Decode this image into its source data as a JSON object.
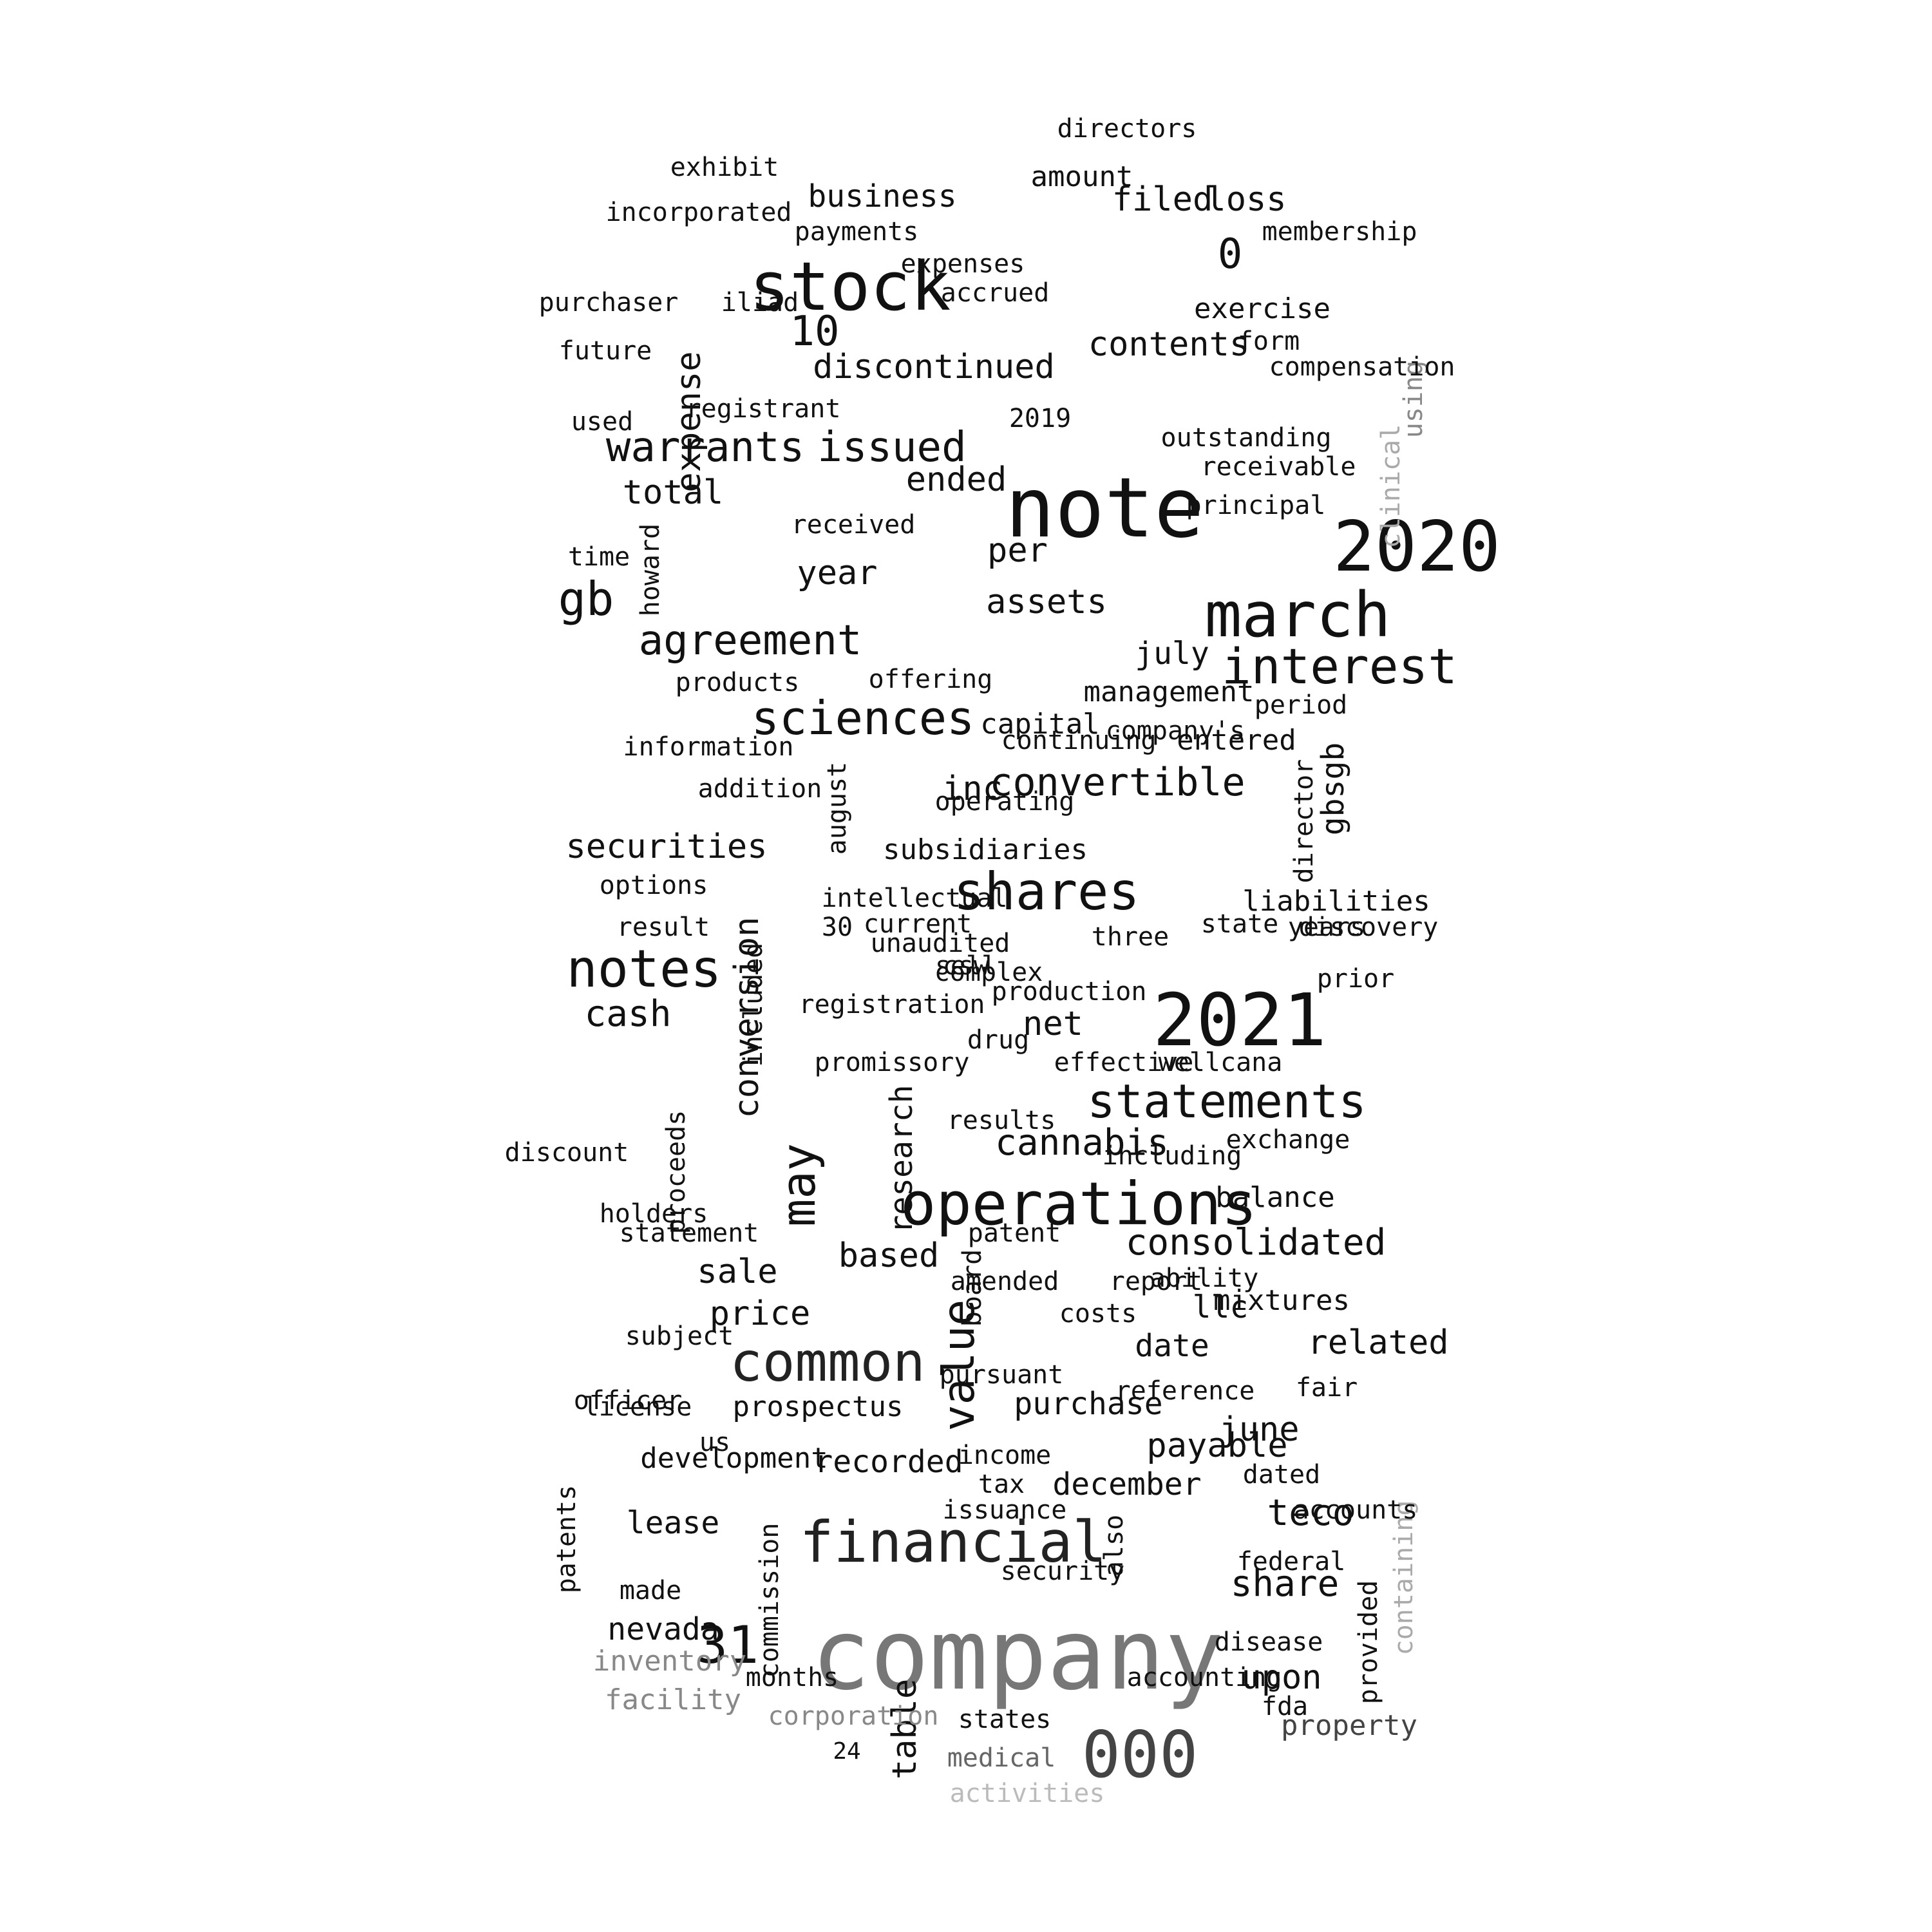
{
  "words": [
    {
      "text": "company",
      "size": 3.8,
      "color": "#777777"
    },
    {
      "text": "note",
      "size": 3.2,
      "color": "#111111"
    },
    {
      "text": "2021",
      "size": 2.8,
      "color": "#111111"
    },
    {
      "text": "2020",
      "size": 2.7,
      "color": "#111111"
    },
    {
      "text": "stock",
      "size": 2.6,
      "color": "#111111"
    },
    {
      "text": "000",
      "size": 2.5,
      "color": "#444444"
    },
    {
      "text": "march",
      "size": 2.4,
      "color": "#111111"
    },
    {
      "text": "operations",
      "size": 2.3,
      "color": "#111111"
    },
    {
      "text": "financial",
      "size": 2.2,
      "color": "#222222"
    },
    {
      "text": "common",
      "size": 2.1,
      "color": "#222222"
    },
    {
      "text": "shares",
      "size": 2.0,
      "color": "#111111"
    },
    {
      "text": "notes",
      "size": 2.0,
      "color": "#111111"
    },
    {
      "text": "31",
      "size": 2.0,
      "color": "#111111"
    },
    {
      "text": "interest",
      "size": 1.9,
      "color": "#111111"
    },
    {
      "text": "statements",
      "size": 1.8,
      "color": "#111111"
    },
    {
      "text": "sciences",
      "size": 1.8,
      "color": "#111111"
    },
    {
      "text": "gb",
      "size": 1.8,
      "color": "#111111"
    },
    {
      "text": "may",
      "size": 1.8,
      "color": "#111111",
      "v": true
    },
    {
      "text": "value",
      "size": 1.7,
      "color": "#111111",
      "v": true
    },
    {
      "text": "agreement",
      "size": 1.6,
      "color": "#111111"
    },
    {
      "text": "warrants",
      "size": 1.6,
      "color": "#111111"
    },
    {
      "text": "issued",
      "size": 1.6,
      "color": "#111111"
    },
    {
      "text": "10",
      "size": 1.6,
      "color": "#111111"
    },
    {
      "text": "0",
      "size": 1.6,
      "color": "#111111"
    },
    {
      "text": "convertible",
      "size": 1.5,
      "color": "#111111"
    },
    {
      "text": "consolidated",
      "size": 1.4,
      "color": "#111111"
    },
    {
      "text": "cannabis",
      "size": 1.4,
      "color": "#111111"
    },
    {
      "text": "cash",
      "size": 1.4,
      "color": "#111111"
    },
    {
      "text": "share",
      "size": 1.4,
      "color": "#111111"
    },
    {
      "text": "teco",
      "size": 1.4,
      "color": "#111111"
    },
    {
      "text": "securities",
      "size": 1.3,
      "color": "#111111"
    },
    {
      "text": "assets",
      "size": 1.3,
      "color": "#111111"
    },
    {
      "text": "discontinued",
      "size": 1.3,
      "color": "#111111"
    },
    {
      "text": "total",
      "size": 1.3,
      "color": "#111111"
    },
    {
      "text": "ended",
      "size": 1.3,
      "color": "#111111"
    },
    {
      "text": "net",
      "size": 1.3,
      "color": "#111111"
    },
    {
      "text": "per",
      "size": 1.3,
      "color": "#111111"
    },
    {
      "text": "contents",
      "size": 1.3,
      "color": "#111111"
    },
    {
      "text": "filed",
      "size": 1.3,
      "color": "#111111"
    },
    {
      "text": "loss",
      "size": 1.3,
      "color": "#111111"
    },
    {
      "text": "inc",
      "size": 1.3,
      "color": "#111111"
    },
    {
      "text": "year",
      "size": 1.3,
      "color": "#111111"
    },
    {
      "text": "conversion",
      "size": 1.3,
      "color": "#111111",
      "v": true
    },
    {
      "text": "expense",
      "size": 1.3,
      "color": "#111111",
      "v": true
    },
    {
      "text": "table",
      "size": 1.3,
      "color": "#111111",
      "v": true
    },
    {
      "text": "based",
      "size": 1.3,
      "color": "#111111"
    },
    {
      "text": "sale",
      "size": 1.3,
      "color": "#111111"
    },
    {
      "text": "price",
      "size": 1.3,
      "color": "#111111"
    },
    {
      "text": "related",
      "size": 1.3,
      "color": "#111111"
    },
    {
      "text": "payable",
      "size": 1.3,
      "color": "#111111"
    },
    {
      "text": "june",
      "size": 1.3,
      "color": "#111111"
    },
    {
      "text": "upon",
      "size": 1.3,
      "color": "#111111"
    },
    {
      "text": "business",
      "size": 1.2,
      "color": "#111111"
    },
    {
      "text": "july",
      "size": 1.2,
      "color": "#111111"
    },
    {
      "text": "llc",
      "size": 1.2,
      "color": "#111111"
    },
    {
      "text": "date",
      "size": 1.2,
      "color": "#111111"
    },
    {
      "text": "purchase",
      "size": 1.2,
      "color": "#111111"
    },
    {
      "text": "recorded",
      "size": 1.2,
      "color": "#111111"
    },
    {
      "text": "december",
      "size": 1.2,
      "color": "#111111"
    },
    {
      "text": "lease",
      "size": 1.2,
      "color": "#111111"
    },
    {
      "text": "nevada",
      "size": 1.2,
      "color": "#111111"
    },
    {
      "text": "gbsgb",
      "size": 1.2,
      "color": "#111111",
      "v": true
    },
    {
      "text": "research",
      "size": 1.2,
      "color": "#111111",
      "v": true
    },
    {
      "text": "subsidiaries",
      "size": 1.1,
      "color": "#111111"
    },
    {
      "text": "liabilities",
      "size": 1.1,
      "color": "#111111"
    },
    {
      "text": "entered",
      "size": 1.1,
      "color": "#111111"
    },
    {
      "text": "capital",
      "size": 1.1,
      "color": "#111111"
    },
    {
      "text": "management",
      "size": 1.1,
      "color": "#111111"
    },
    {
      "text": "exercise",
      "size": 1.1,
      "color": "#111111"
    },
    {
      "text": "balance",
      "size": 1.1,
      "color": "#111111"
    },
    {
      "text": "prospectus",
      "size": 1.1,
      "color": "#111111"
    },
    {
      "text": "development",
      "size": 1.1,
      "color": "#111111"
    },
    {
      "text": "amount",
      "size": 1.1,
      "color": "#111111"
    },
    {
      "text": "mixtures",
      "size": 1.1,
      "color": "#111111"
    },
    {
      "text": "property",
      "size": 1.1,
      "color": "#444444"
    },
    {
      "text": "inventory",
      "size": 1.1,
      "color": "#888888"
    },
    {
      "text": "facility",
      "size": 1.1,
      "color": "#888888"
    },
    {
      "text": "corporation",
      "size": 1.0,
      "color": "#888888"
    },
    {
      "text": "medical",
      "size": 1.0,
      "color": "#666666"
    },
    {
      "text": "activities",
      "size": 1.0,
      "color": "#bbbbbb"
    },
    {
      "text": "containing",
      "size": 1.0,
      "color": "#aaaaaa",
      "v": true
    },
    {
      "text": "clinical",
      "size": 1.0,
      "color": "#aaaaaa",
      "v": true
    },
    {
      "text": "using",
      "size": 1.0,
      "color": "#888888",
      "v": true
    },
    {
      "text": "commission",
      "size": 1.0,
      "color": "#111111",
      "v": true
    },
    {
      "text": "proceeds",
      "size": 1.0,
      "color": "#111111",
      "v": true
    },
    {
      "text": "included",
      "size": 1.0,
      "color": "#111111",
      "v": true
    },
    {
      "text": "director",
      "size": 1.0,
      "color": "#111111",
      "v": true
    },
    {
      "text": "august",
      "size": 1.0,
      "color": "#111111",
      "v": true
    },
    {
      "text": "howard",
      "size": 1.0,
      "color": "#111111",
      "v": true
    },
    {
      "text": "also",
      "size": 1.0,
      "color": "#111111",
      "v": true
    },
    {
      "text": "board",
      "size": 1.0,
      "color": "#111111",
      "v": true
    },
    {
      "text": "patents",
      "size": 1.0,
      "color": "#111111",
      "v": true
    },
    {
      "text": "provided",
      "size": 1.0,
      "color": "#111111",
      "v": true
    },
    {
      "text": "future",
      "size": 1.0,
      "color": "#111111"
    },
    {
      "text": "time",
      "size": 1.0,
      "color": "#111111"
    },
    {
      "text": "2019",
      "size": 1.0,
      "color": "#111111"
    },
    {
      "text": "30",
      "size": 1.0,
      "color": "#111111"
    },
    {
      "text": "24",
      "size": 0.9,
      "color": "#111111"
    },
    {
      "text": "incorporated",
      "size": 1.0,
      "color": "#111111"
    },
    {
      "text": "payments",
      "size": 1.0,
      "color": "#111111"
    },
    {
      "text": "expenses",
      "size": 1.0,
      "color": "#111111"
    },
    {
      "text": "accrued",
      "size": 1.0,
      "color": "#111111"
    },
    {
      "text": "exhibit",
      "size": 1.0,
      "color": "#111111"
    },
    {
      "text": "directors",
      "size": 1.0,
      "color": "#111111"
    },
    {
      "text": "membership",
      "size": 1.0,
      "color": "#111111"
    },
    {
      "text": "form",
      "size": 1.0,
      "color": "#111111"
    },
    {
      "text": "compensation",
      "size": 1.0,
      "color": "#111111"
    },
    {
      "text": "registrant",
      "size": 1.0,
      "color": "#111111"
    },
    {
      "text": "received",
      "size": 1.0,
      "color": "#111111"
    },
    {
      "text": "outstanding",
      "size": 1.0,
      "color": "#111111"
    },
    {
      "text": "receivable",
      "size": 1.0,
      "color": "#111111"
    },
    {
      "text": "principal",
      "size": 1.0,
      "color": "#111111"
    },
    {
      "text": "products",
      "size": 1.0,
      "color": "#111111"
    },
    {
      "text": "offering",
      "size": 1.0,
      "color": "#111111"
    },
    {
      "text": "period",
      "size": 1.0,
      "color": "#111111"
    },
    {
      "text": "information",
      "size": 1.0,
      "color": "#111111"
    },
    {
      "text": "continuing",
      "size": 1.0,
      "color": "#111111"
    },
    {
      "text": "company's",
      "size": 1.0,
      "color": "#111111"
    },
    {
      "text": "addition",
      "size": 1.0,
      "color": "#111111"
    },
    {
      "text": "operating",
      "size": 1.0,
      "color": "#111111"
    },
    {
      "text": "options",
      "size": 1.0,
      "color": "#111111"
    },
    {
      "text": "intellectual",
      "size": 1.0,
      "color": "#111111"
    },
    {
      "text": "current",
      "size": 1.0,
      "color": "#111111"
    },
    {
      "text": "unaudited",
      "size": 1.0,
      "color": "#111111"
    },
    {
      "text": "three",
      "size": 1.0,
      "color": "#111111"
    },
    {
      "text": "state",
      "size": 1.0,
      "color": "#111111"
    },
    {
      "text": "years",
      "size": 1.0,
      "color": "#111111"
    },
    {
      "text": "discovery",
      "size": 1.0,
      "color": "#111111"
    },
    {
      "text": "complex",
      "size": 1.0,
      "color": "#111111"
    },
    {
      "text": "production",
      "size": 1.0,
      "color": "#111111"
    },
    {
      "text": "prior",
      "size": 1.0,
      "color": "#111111"
    },
    {
      "text": "registration",
      "size": 1.0,
      "color": "#111111"
    },
    {
      "text": "drug",
      "size": 1.0,
      "color": "#111111"
    },
    {
      "text": "effective",
      "size": 1.0,
      "color": "#111111"
    },
    {
      "text": "wellcana",
      "size": 1.0,
      "color": "#111111"
    },
    {
      "text": "promissory",
      "size": 1.0,
      "color": "#111111"
    },
    {
      "text": "exchange",
      "size": 1.0,
      "color": "#111111"
    },
    {
      "text": "including",
      "size": 1.0,
      "color": "#111111"
    },
    {
      "text": "results",
      "size": 1.0,
      "color": "#111111"
    },
    {
      "text": "discount",
      "size": 1.0,
      "color": "#111111"
    },
    {
      "text": "holders",
      "size": 1.0,
      "color": "#111111"
    },
    {
      "text": "statement",
      "size": 1.0,
      "color": "#111111"
    },
    {
      "text": "patent",
      "size": 1.0,
      "color": "#111111"
    },
    {
      "text": "amended",
      "size": 1.0,
      "color": "#111111"
    },
    {
      "text": "report",
      "size": 1.0,
      "color": "#111111"
    },
    {
      "text": "ability",
      "size": 1.0,
      "color": "#111111"
    },
    {
      "text": "costs",
      "size": 1.0,
      "color": "#111111"
    },
    {
      "text": "subject",
      "size": 1.0,
      "color": "#111111"
    },
    {
      "text": "reference",
      "size": 1.0,
      "color": "#111111"
    },
    {
      "text": "officer",
      "size": 1.0,
      "color": "#111111"
    },
    {
      "text": "license",
      "size": 1.0,
      "color": "#111111"
    },
    {
      "text": "fair",
      "size": 1.0,
      "color": "#111111"
    },
    {
      "text": "pursuant",
      "size": 1.0,
      "color": "#111111"
    },
    {
      "text": "us",
      "size": 1.0,
      "color": "#111111"
    },
    {
      "text": "income",
      "size": 1.0,
      "color": "#111111"
    },
    {
      "text": "dated",
      "size": 1.0,
      "color": "#111111"
    },
    {
      "text": "tax",
      "size": 1.0,
      "color": "#111111"
    },
    {
      "text": "issuance",
      "size": 1.0,
      "color": "#111111"
    },
    {
      "text": "made",
      "size": 1.0,
      "color": "#111111"
    },
    {
      "text": "federal",
      "size": 1.0,
      "color": "#111111"
    },
    {
      "text": "security",
      "size": 1.0,
      "color": "#111111"
    },
    {
      "text": "disease",
      "size": 1.0,
      "color": "#111111"
    },
    {
      "text": "months",
      "size": 1.0,
      "color": "#111111"
    },
    {
      "text": "states",
      "size": 1.0,
      "color": "#111111"
    },
    {
      "text": "fda",
      "size": 1.0,
      "color": "#111111"
    },
    {
      "text": "accounting",
      "size": 1.0,
      "color": "#111111"
    },
    {
      "text": "accounts",
      "size": 1.0,
      "color": "#111111"
    },
    {
      "text": "purchaser",
      "size": 1.0,
      "color": "#111111"
    },
    {
      "text": "used",
      "size": 1.0,
      "color": "#111111"
    },
    {
      "text": "iliad",
      "size": 1.0,
      "color": "#111111"
    },
    {
      "text": "result",
      "size": 1.0,
      "color": "#111111"
    },
    {
      "text": "csw",
      "size": 1.0,
      "color": "#111111"
    },
    {
      "text": "sell",
      "size": 1.0,
      "color": "#111111"
    }
  ]
}
